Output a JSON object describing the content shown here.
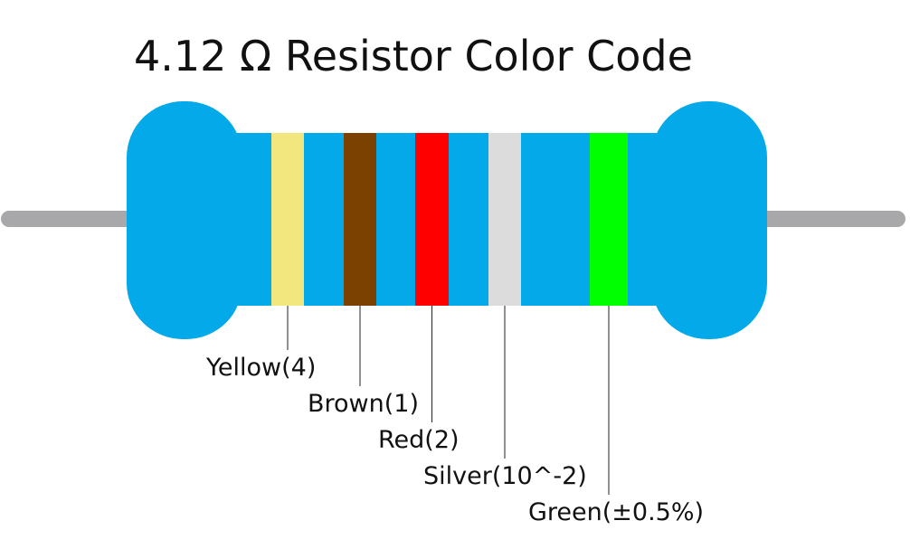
{
  "title": "4.12 Ω Resistor Color Code",
  "bands": [
    {
      "label": "Yellow(4)",
      "color": "#f2e67f"
    },
    {
      "label": "Brown(1)",
      "color": "#7b4100"
    },
    {
      "label": "Red(2)",
      "color": "#ff0000"
    },
    {
      "label": "Silver(10^-2)",
      "color": "#dcdcdc"
    },
    {
      "label": "Green(±0.5%)",
      "color": "#00ff00"
    }
  ]
}
